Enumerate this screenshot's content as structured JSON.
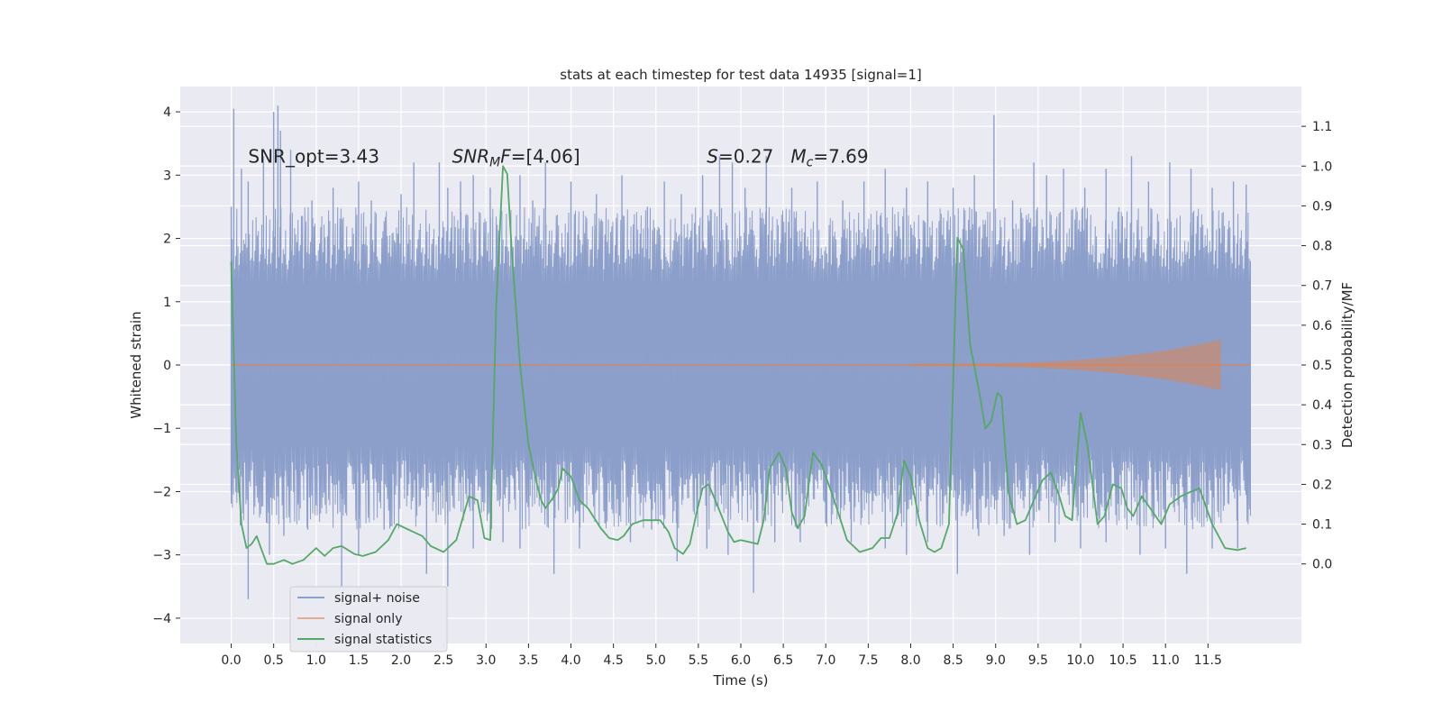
{
  "chart_data": {
    "type": "line",
    "title": "stats at each timestep for test data 14935 [signal=1]",
    "xlabel": "Time (s)",
    "ylabel": "Whitened strain",
    "ylabel_right": "Detection probability/MF",
    "xlim": [
      -0.6,
      12.6
    ],
    "ylim": [
      -4.4,
      4.4
    ],
    "ylim_right": [
      -0.2,
      1.2
    ],
    "x_ticks": [
      0.0,
      0.5,
      1.0,
      1.5,
      2.0,
      2.5,
      3.0,
      3.5,
      4.0,
      4.5,
      5.0,
      5.5,
      6.0,
      6.5,
      7.0,
      7.5,
      8.0,
      8.5,
      9.0,
      9.5,
      10.0,
      10.5,
      11.0,
      11.5
    ],
    "x_tick_labels": [
      "0.0",
      "0.5",
      "1.0",
      "1.5",
      "2.0",
      "2.5",
      "3.0",
      "3.5",
      "4.0",
      "4.5",
      "5.0",
      "5.5",
      "6.0",
      "6.5",
      "7.0",
      "7.5",
      "8.0",
      "8.5",
      "9.0",
      "9.5",
      "10.0",
      "10.5",
      "11.0",
      "11.5"
    ],
    "y_ticks": [
      4,
      3,
      2,
      1,
      0,
      -1,
      -2,
      -3,
      -4
    ],
    "y_tick_labels": [
      "4",
      "3",
      "2",
      "1",
      "0",
      "−1",
      "−2",
      "−3",
      "−4"
    ],
    "y_right_ticks": [
      1.1,
      1.0,
      0.9,
      0.8,
      0.7,
      0.6,
      0.5,
      0.4,
      0.3,
      0.2,
      0.1,
      0.0
    ],
    "y_right_tick_labels": [
      "1.1",
      "1.0",
      "0.9",
      "0.8",
      "0.7",
      "0.6",
      "0.5",
      "0.4",
      "0.3",
      "0.2",
      "0.1",
      "0.0"
    ],
    "grid": true,
    "legend_position": "lower-left",
    "annotations": [
      {
        "text": "SNR_opt=3.43",
        "x": 0.2,
        "y": 3.3
      },
      {
        "text": "SNR_MF=[4.06]",
        "x": 2.6,
        "y": 3.3
      },
      {
        "text": "S=0.27   M_c=7.69",
        "x": 5.6,
        "y": 3.3
      }
    ],
    "series": [
      {
        "name": "signal+ noise",
        "color": "#8c9fcb",
        "axis": "left",
        "duration": 12.0,
        "envelope_upper": 1.3,
        "envelope_lower": -1.3,
        "peaks": [
          [
            0.0,
            2.5
          ],
          [
            0.03,
            4.05
          ],
          [
            0.12,
            3.1
          ],
          [
            0.2,
            2.9
          ],
          [
            0.38,
            3.3
          ],
          [
            0.5,
            4.0
          ],
          [
            0.55,
            4.1
          ],
          [
            0.58,
            3.7
          ],
          [
            0.7,
            3.4
          ],
          [
            0.95,
            2.6
          ],
          [
            1.2,
            2.8
          ],
          [
            1.5,
            2.9
          ],
          [
            1.65,
            2.6
          ],
          [
            2.0,
            2.7
          ],
          [
            2.15,
            3.2
          ],
          [
            2.45,
            3.2
          ],
          [
            2.55,
            2.8
          ],
          [
            2.7,
            2.9
          ],
          [
            2.85,
            3.0
          ],
          [
            3.05,
            2.8
          ],
          [
            3.4,
            3.0
          ],
          [
            3.55,
            2.6
          ],
          [
            3.7,
            3.2
          ],
          [
            4.0,
            2.9
          ],
          [
            4.3,
            2.7
          ],
          [
            4.6,
            3.0
          ],
          [
            4.9,
            2.5
          ],
          [
            5.1,
            2.9
          ],
          [
            5.3,
            2.7
          ],
          [
            5.55,
            3.0
          ],
          [
            5.75,
            3.3
          ],
          [
            5.9,
            3.2
          ],
          [
            6.05,
            2.8
          ],
          [
            6.3,
            3.3
          ],
          [
            6.6,
            2.8
          ],
          [
            6.9,
            2.9
          ],
          [
            7.2,
            2.6
          ],
          [
            7.45,
            2.9
          ],
          [
            7.7,
            3.1
          ],
          [
            7.95,
            2.8
          ],
          [
            8.2,
            2.9
          ],
          [
            8.5,
            2.8
          ],
          [
            8.75,
            3.0
          ],
          [
            8.98,
            3.95
          ],
          [
            9.2,
            2.6
          ],
          [
            9.45,
            3.2
          ],
          [
            9.6,
            3.0
          ],
          [
            9.8,
            3.1
          ],
          [
            10.05,
            2.8
          ],
          [
            10.3,
            3.1
          ],
          [
            10.6,
            3.3
          ],
          [
            10.8,
            2.9
          ],
          [
            11.05,
            3.2
          ],
          [
            11.3,
            3.1
          ],
          [
            11.55,
            2.8
          ],
          [
            11.8,
            2.9
          ],
          [
            11.95,
            2.85
          ]
        ],
        "troughs": [
          [
            0.0,
            -2.0
          ],
          [
            0.2,
            -3.7
          ],
          [
            0.45,
            -3.0
          ],
          [
            0.62,
            -2.7
          ],
          [
            0.9,
            -2.6
          ],
          [
            1.3,
            -3.5
          ],
          [
            1.5,
            -3.0
          ],
          [
            1.8,
            -2.6
          ],
          [
            2.3,
            -3.3
          ],
          [
            2.55,
            -3.5
          ],
          [
            2.85,
            -2.9
          ],
          [
            3.2,
            -2.8
          ],
          [
            3.4,
            -2.9
          ],
          [
            3.8,
            -3.3
          ],
          [
            4.1,
            -2.9
          ],
          [
            4.4,
            -2.5
          ],
          [
            4.7,
            -2.8
          ],
          [
            4.95,
            -2.6
          ],
          [
            5.25,
            -3.1
          ],
          [
            5.6,
            -2.9
          ],
          [
            5.85,
            -3.0
          ],
          [
            6.15,
            -3.6
          ],
          [
            6.4,
            -2.8
          ],
          [
            6.7,
            -2.8
          ],
          [
            7.0,
            -2.5
          ],
          [
            7.3,
            -2.8
          ],
          [
            7.7,
            -2.9
          ],
          [
            7.95,
            -3.0
          ],
          [
            8.2,
            -2.8
          ],
          [
            8.55,
            -3.3
          ],
          [
            8.8,
            -2.7
          ],
          [
            9.1,
            -2.7
          ],
          [
            9.4,
            -3.0
          ],
          [
            9.7,
            -2.8
          ],
          [
            10.0,
            -2.9
          ],
          [
            10.3,
            -2.8
          ],
          [
            10.7,
            -3.0
          ],
          [
            11.0,
            -2.9
          ],
          [
            11.25,
            -3.3
          ],
          [
            11.55,
            -2.9
          ],
          [
            11.85,
            -2.9
          ]
        ]
      },
      {
        "name": "signal only",
        "color": "#dd8452",
        "axis": "left",
        "chirp_start": 8.0,
        "chirp_end": 11.65,
        "amplitude_end": 0.4
      },
      {
        "name": "signal statistics",
        "color": "#55a868",
        "axis": "right",
        "x": [
          0.0,
          0.06,
          0.12,
          0.18,
          0.24,
          0.3,
          0.35,
          0.42,
          0.5,
          0.62,
          0.72,
          0.85,
          0.9,
          1.0,
          1.1,
          1.2,
          1.3,
          1.45,
          1.55,
          1.7,
          1.85,
          1.95,
          2.05,
          2.15,
          2.25,
          2.35,
          2.5,
          2.65,
          2.8,
          2.9,
          2.98,
          3.05,
          3.12,
          3.2,
          3.25,
          3.3,
          3.4,
          3.5,
          3.6,
          3.65,
          3.7,
          3.8,
          3.85,
          3.9,
          4.0,
          4.1,
          4.2,
          4.35,
          4.45,
          4.55,
          4.62,
          4.72,
          4.85,
          4.95,
          5.05,
          5.15,
          5.22,
          5.32,
          5.4,
          5.48,
          5.55,
          5.62,
          5.7,
          5.85,
          5.92,
          6.0,
          6.1,
          6.2,
          6.27,
          6.34,
          6.45,
          6.53,
          6.6,
          6.67,
          6.75,
          6.85,
          6.95,
          7.1,
          7.25,
          7.4,
          7.55,
          7.65,
          7.75,
          7.85,
          7.92,
          8.0,
          8.1,
          8.2,
          8.28,
          8.36,
          8.45,
          8.55,
          8.62,
          8.7,
          8.8,
          8.88,
          8.95,
          9.02,
          9.07,
          9.15,
          9.25,
          9.35,
          9.45,
          9.55,
          9.65,
          9.75,
          9.82,
          9.9,
          10.0,
          10.08,
          10.2,
          10.28,
          10.38,
          10.48,
          10.55,
          10.62,
          10.72,
          10.82,
          10.95,
          11.05,
          11.18,
          11.28,
          11.4,
          11.55,
          11.7,
          11.85,
          11.95
        ],
        "values": [
          0.76,
          0.3,
          0.1,
          0.04,
          0.05,
          0.07,
          0.04,
          0.0,
          0.0,
          0.01,
          0.0,
          0.01,
          0.02,
          0.04,
          0.02,
          0.04,
          0.045,
          0.025,
          0.02,
          0.03,
          0.06,
          0.1,
          0.09,
          0.08,
          0.07,
          0.045,
          0.03,
          0.06,
          0.17,
          0.16,
          0.065,
          0.06,
          0.65,
          1.0,
          0.98,
          0.8,
          0.5,
          0.3,
          0.2,
          0.16,
          0.14,
          0.17,
          0.19,
          0.24,
          0.22,
          0.16,
          0.14,
          0.09,
          0.065,
          0.06,
          0.07,
          0.1,
          0.11,
          0.11,
          0.11,
          0.08,
          0.04,
          0.025,
          0.05,
          0.13,
          0.19,
          0.2,
          0.16,
          0.08,
          0.055,
          0.06,
          0.055,
          0.05,
          0.11,
          0.24,
          0.28,
          0.24,
          0.13,
          0.09,
          0.12,
          0.28,
          0.25,
          0.16,
          0.06,
          0.03,
          0.04,
          0.065,
          0.065,
          0.13,
          0.26,
          0.22,
          0.11,
          0.04,
          0.03,
          0.04,
          0.1,
          0.82,
          0.79,
          0.55,
          0.44,
          0.34,
          0.36,
          0.43,
          0.42,
          0.18,
          0.1,
          0.11,
          0.16,
          0.21,
          0.23,
          0.17,
          0.12,
          0.11,
          0.38,
          0.3,
          0.1,
          0.12,
          0.2,
          0.19,
          0.14,
          0.12,
          0.17,
          0.14,
          0.1,
          0.15,
          0.17,
          0.18,
          0.19,
          0.1,
          0.04,
          0.035,
          0.04
        ]
      }
    ]
  }
}
